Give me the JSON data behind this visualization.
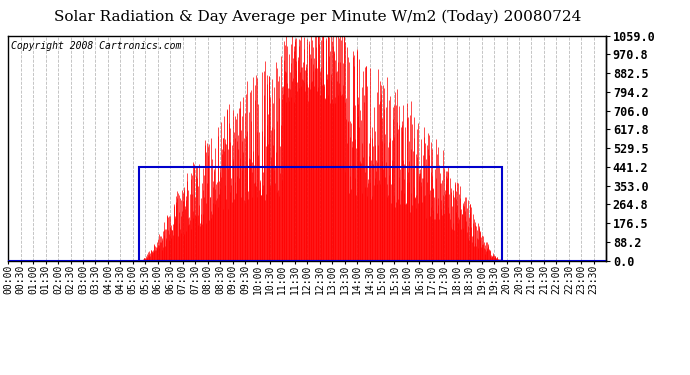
{
  "title": "Solar Radiation & Day Average per Minute W/m2 (Today) 20080724",
  "copyright": "Copyright 2008 Cartronics.com",
  "background_color": "#ffffff",
  "bar_color": "#ff0000",
  "line_color": "#0000cc",
  "grid_color": "#aaaaaa",
  "y_ticks": [
    0.0,
    88.2,
    176.5,
    264.8,
    353.0,
    441.2,
    529.5,
    617.8,
    706.0,
    794.2,
    882.5,
    970.8,
    1059.0
  ],
  "y_max": 1059.0,
  "y_min": 0.0,
  "day_avg": 441.2,
  "sunrise_min": 315,
  "sunset_min": 1190,
  "title_fontsize": 11,
  "copyright_fontsize": 7,
  "tick_fontsize": 7
}
